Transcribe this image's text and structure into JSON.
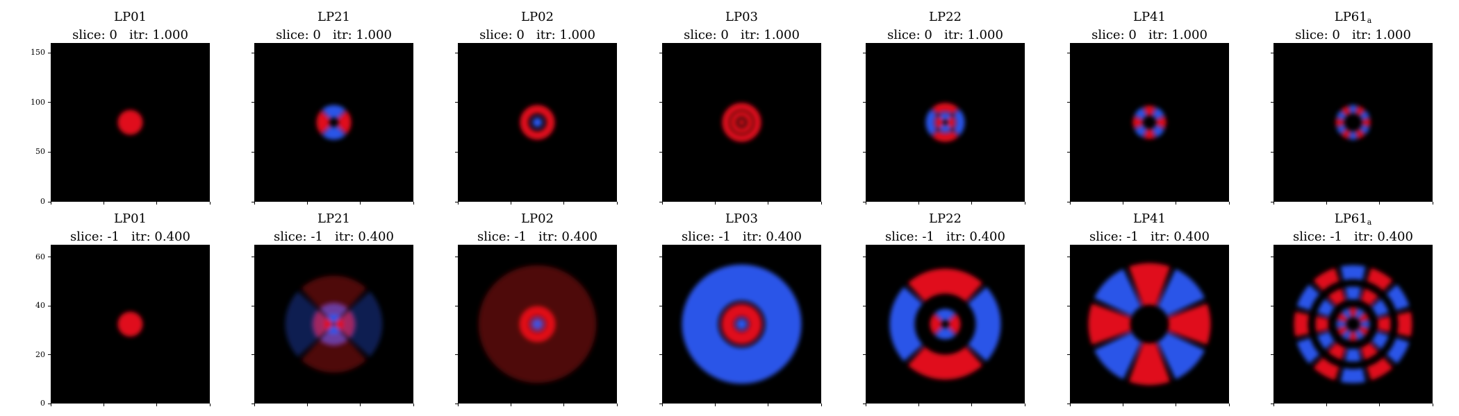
{
  "colors": {
    "positive": "#e0101a",
    "negative": "#2a55e8",
    "background": "#000000"
  },
  "chart_data": {
    "type": "heatmap",
    "colormap": "diverging blue-black-red",
    "rows": [
      {
        "slice": "0",
        "itr": "1.000",
        "ylim": [
          0,
          160
        ],
        "yticks": [
          "0",
          "50",
          "100",
          "150"
        ],
        "panels": [
          {
            "mode": "LP01",
            "title_main": "LP01",
            "title_sub": "",
            "subtitle": "slice: 0   itr: 1.000",
            "l": 0,
            "rings": [
              {
                "r": 0,
                "w": 18,
                "s": 1
              }
            ]
          },
          {
            "mode": "LP21",
            "title_main": "LP21",
            "title_sub": "",
            "subtitle": "slice: 0   itr: 1.000",
            "l": 2,
            "rings": [
              {
                "r": 16,
                "w": 9,
                "s": 1
              }
            ]
          },
          {
            "mode": "LP02",
            "title_main": "LP02",
            "title_sub": "",
            "subtitle": "slice: 0   itr: 1.000",
            "l": 0,
            "rings": [
              {
                "r": 0,
                "w": 7,
                "s": -1
              },
              {
                "r": 19,
                "w": 6,
                "s": 1
              }
            ]
          },
          {
            "mode": "LP03",
            "title_main": "LP03",
            "title_sub": "",
            "subtitle": "slice: 0   itr: 1.000",
            "l": 0,
            "rings": [
              {
                "r": 0,
                "w": 5,
                "s": 1
              },
              {
                "r": 12,
                "w": 4,
                "s": 1
              },
              {
                "r": 23,
                "w": 5,
                "s": 1
              }
            ]
          },
          {
            "mode": "LP22",
            "title_main": "LP22",
            "title_sub": "",
            "subtitle": "slice: 0   itr: 1.000",
            "l": 2,
            "rings": [
              {
                "r": 9,
                "w": 5,
                "s": 1
              },
              {
                "r": 22,
                "w": 6,
                "s": -1
              }
            ]
          },
          {
            "mode": "LP41",
            "title_main": "LP41",
            "title_sub": "",
            "subtitle": "slice: 0   itr: 1.000",
            "l": 4,
            "rings": [
              {
                "r": 17,
                "w": 7,
                "s": 1
              }
            ]
          },
          {
            "mode": "LP61_a",
            "title_main": "LP61",
            "title_sub": "a",
            "subtitle": "slice: 0   itr: 1.000",
            "l": 6,
            "rings": [
              {
                "r": 19,
                "w": 6,
                "s": 1
              }
            ]
          }
        ]
      },
      {
        "slice": "-1",
        "itr": "0.400",
        "ylim": [
          0,
          65
        ],
        "yticks": [
          "0",
          "20",
          "40",
          "60"
        ],
        "panels": [
          {
            "mode": "LP01",
            "title_main": "LP01",
            "title_sub": "",
            "subtitle": "slice: -1   itr: 0.400",
            "l": 0,
            "rings": [
              {
                "r": 0,
                "w": 18,
                "s": 1
              }
            ]
          },
          {
            "mode": "LP21",
            "title_main": "LP21",
            "title_sub": "",
            "subtitle": "slice: -1   itr: 0.400",
            "l": 2,
            "rings": [
              {
                "r": 16,
                "w": 14,
                "s": 1
              },
              {
                "r": 42,
                "w": 28,
                "s": -0.35
              }
            ]
          },
          {
            "mode": "LP02",
            "title_main": "LP02",
            "title_sub": "",
            "subtitle": "slice: -1   itr: 0.400",
            "l": 0,
            "rings": [
              {
                "r": 0,
                "w": 9,
                "s": -1
              },
              {
                "r": 19,
                "w": 7,
                "s": 1
              },
              {
                "r": 45,
                "w": 40,
                "s": 0.35
              }
            ]
          },
          {
            "mode": "LP03",
            "title_main": "LP03",
            "title_sub": "",
            "subtitle": "slice: -1   itr: 0.400",
            "l": 0,
            "rings": [
              {
                "r": 0,
                "w": 8,
                "s": -1
              },
              {
                "r": 20,
                "w": 9,
                "s": 1
              },
              {
                "r": 60,
                "w": 26,
                "s": -1
              }
            ]
          },
          {
            "mode": "LP22",
            "title_main": "LP22",
            "title_sub": "",
            "subtitle": "slice: -1   itr: 0.400",
            "l": 2,
            "rings": [
              {
                "r": 14,
                "w": 8,
                "s": 1
              },
              {
                "r": 62,
                "w": 18,
                "s": -1
              }
            ]
          },
          {
            "mode": "LP41",
            "title_main": "LP41",
            "title_sub": "",
            "subtitle": "slice: -1   itr: 0.400",
            "l": 4,
            "rings": [
              {
                "r": 58,
                "w": 30,
                "s": 1
              }
            ]
          },
          {
            "mode": "LP61_a",
            "title_main": "LP61",
            "title_sub": "a",
            "subtitle": "slice: -1   itr: 0.400",
            "l": 6,
            "rings": [
              {
                "r": 17,
                "w": 7,
                "s": -1
              },
              {
                "r": 45,
                "w": 9,
                "s": 1
              },
              {
                "r": 75,
                "w": 10,
                "s": 1
              }
            ]
          }
        ]
      }
    ]
  }
}
